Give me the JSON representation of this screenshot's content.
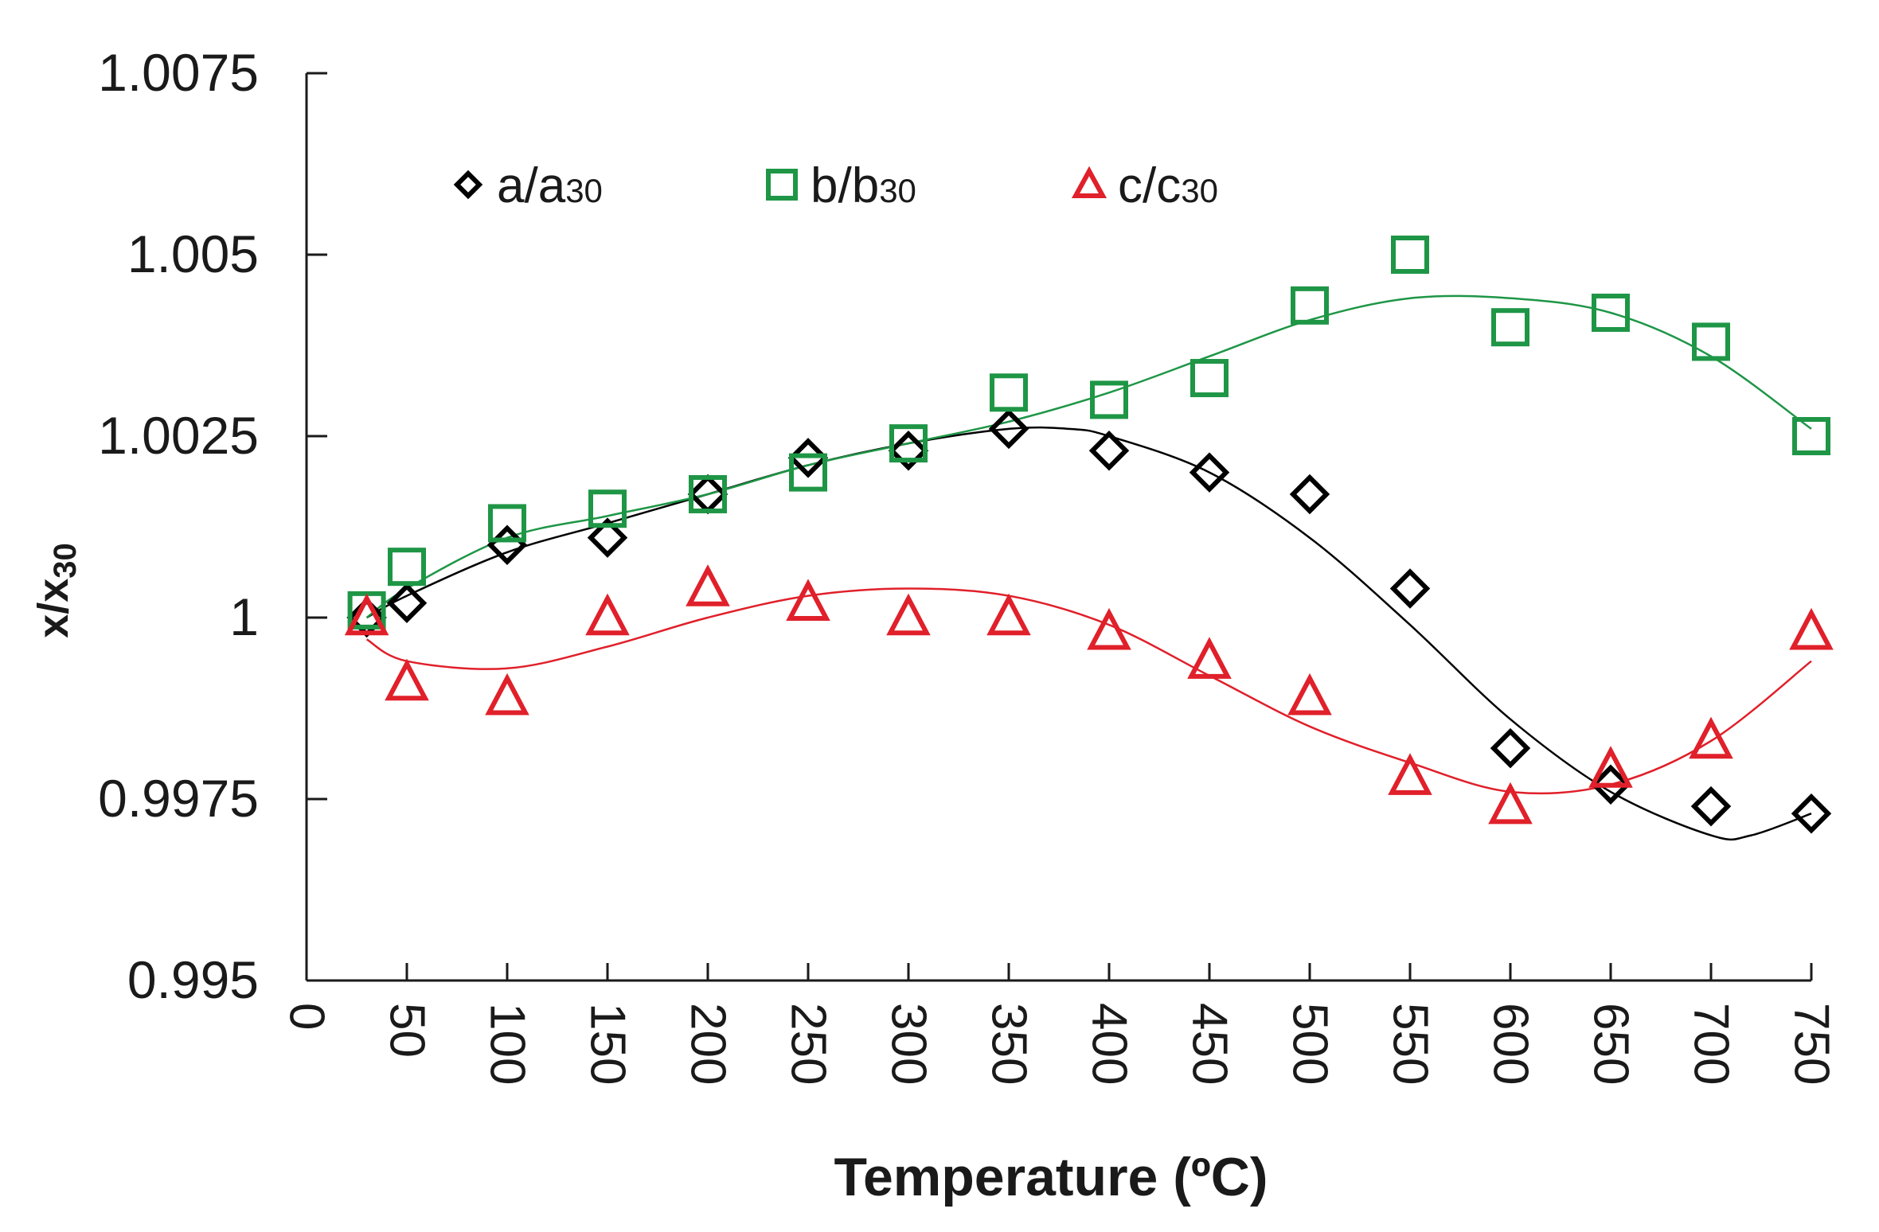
{
  "chart_data": {
    "type": "scatter",
    "title": "",
    "xlabel": "Temperature (ºC)",
    "ylabel_main": "x/x",
    "ylabel_sub": "30",
    "xlim": [
      0,
      750
    ],
    "ylim": [
      0.995,
      1.0075
    ],
    "xticks": [
      "0",
      "50",
      "100",
      "150",
      "200",
      "250",
      "300",
      "350",
      "400",
      "450",
      "500",
      "550",
      "600",
      "650",
      "700",
      "750"
    ],
    "yticks": [
      "0.995",
      "0.9975",
      "1",
      "1.0025",
      "1.005",
      "1.0075"
    ],
    "legend_position": "top",
    "x": [
      30,
      50,
      100,
      150,
      200,
      250,
      300,
      350,
      400,
      450,
      500,
      550,
      600,
      650,
      700,
      750
    ],
    "series": [
      {
        "name": "a/a",
        "name_sub": "30",
        "marker": "diamond",
        "color": "#000000",
        "values": [
          1.0,
          1.0002,
          1.001,
          1.0011,
          1.0017,
          1.0022,
          1.0023,
          1.0026,
          1.0023,
          1.002,
          1.0017,
          1.0004,
          0.9982,
          0.9977,
          0.9974,
          0.9973
        ],
        "fit": [
          [
            30,
            1.0
          ],
          [
            50,
            1.0003
          ],
          [
            100,
            1.0009
          ],
          [
            150,
            1.0013
          ],
          [
            200,
            1.0017
          ],
          [
            250,
            1.0021
          ],
          [
            300,
            1.0024
          ],
          [
            350,
            1.0026
          ],
          [
            380,
            1.0026
          ],
          [
            400,
            1.0025
          ],
          [
            450,
            1.002
          ],
          [
            500,
            1.0011
          ],
          [
            550,
            0.9999
          ],
          [
            600,
            0.9986
          ],
          [
            650,
            0.9976
          ],
          [
            700,
            0.997
          ],
          [
            720,
            0.997
          ],
          [
            750,
            0.9973
          ]
        ]
      },
      {
        "name": "b/b",
        "name_sub": "30",
        "marker": "square",
        "color": "#1e9646",
        "values": [
          1.0001,
          1.0007,
          1.0013,
          1.0015,
          1.0017,
          1.002,
          1.0024,
          1.0031,
          1.003,
          1.0033,
          1.0043,
          1.005,
          1.004,
          1.0042,
          1.0038,
          1.0025
        ],
        "fit": [
          [
            30,
            1.0
          ],
          [
            50,
            1.0004
          ],
          [
            100,
            1.0011
          ],
          [
            150,
            1.0014
          ],
          [
            200,
            1.0017
          ],
          [
            250,
            1.0021
          ],
          [
            300,
            1.0024
          ],
          [
            350,
            1.0027
          ],
          [
            400,
            1.0031
          ],
          [
            450,
            1.0036
          ],
          [
            500,
            1.0041
          ],
          [
            550,
            1.0044
          ],
          [
            600,
            1.0044
          ],
          [
            650,
            1.0042
          ],
          [
            700,
            1.0036
          ],
          [
            750,
            1.0026
          ]
        ]
      },
      {
        "name": "c/c",
        "name_sub": "30",
        "marker": "triangle",
        "color": "#e0202a",
        "values": [
          1.0,
          0.9991,
          0.9989,
          1.0,
          1.0004,
          1.0002,
          1.0,
          1.0,
          0.9998,
          0.9994,
          0.9989,
          0.9978,
          0.9974,
          0.9979,
          0.9983,
          0.9998
        ],
        "fit": [
          [
            30,
            0.9997
          ],
          [
            50,
            0.9994
          ],
          [
            100,
            0.9993
          ],
          [
            150,
            0.9996
          ],
          [
            200,
            1.0
          ],
          [
            250,
            1.0003
          ],
          [
            300,
            1.0004
          ],
          [
            350,
            1.0003
          ],
          [
            400,
            0.9999
          ],
          [
            450,
            0.9992
          ],
          [
            500,
            0.9985
          ],
          [
            550,
            0.998
          ],
          [
            600,
            0.9976
          ],
          [
            650,
            0.9977
          ],
          [
            700,
            0.9983
          ],
          [
            750,
            0.9994
          ]
        ]
      }
    ]
  }
}
